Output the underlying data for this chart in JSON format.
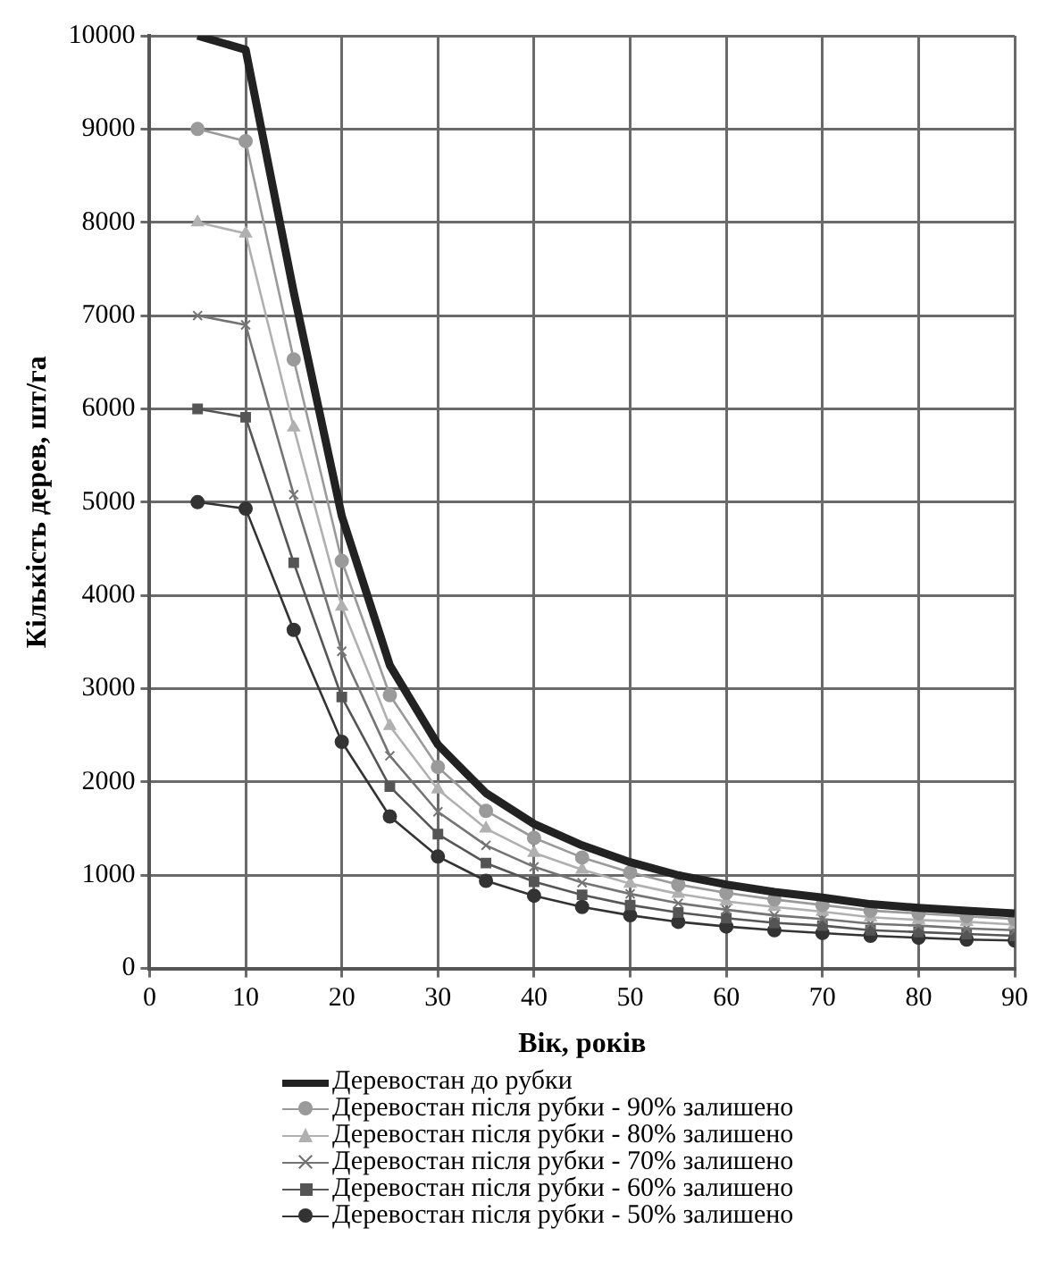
{
  "chart_data": {
    "type": "line",
    "xlabel": "Вік, років",
    "ylabel": "Кількість дерев, шт/га",
    "x": [
      5,
      10,
      15,
      20,
      25,
      30,
      35,
      40,
      45,
      50,
      55,
      60,
      65,
      70,
      75,
      80,
      85,
      90
    ],
    "xlim": [
      0,
      90
    ],
    "xticks": [
      0,
      10,
      20,
      30,
      40,
      50,
      60,
      70,
      80,
      90
    ],
    "ylim": [
      0,
      10000
    ],
    "yticks": [
      0,
      1000,
      2000,
      3000,
      4000,
      5000,
      6000,
      7000,
      8000,
      9000,
      10000
    ],
    "grid": true,
    "legend": "bottom",
    "line_style": "solid",
    "series": [
      {
        "name": "Деревостан до рубки",
        "color": "#222222",
        "marker": "none",
        "values": [
          10000,
          9850,
          7250,
          4850,
          3250,
          2400,
          1880,
          1550,
          1320,
          1140,
          1000,
          900,
          820,
          760,
          690,
          650,
          620,
          590
        ]
      },
      {
        "name": "Деревостан після рубки - 90% залишено",
        "color": "#9a9a9a",
        "marker": "circle",
        "values": [
          9000,
          8870,
          6530,
          4370,
          2930,
          2160,
          1690,
          1400,
          1190,
          1030,
          900,
          810,
          740,
          680,
          620,
          590,
          560,
          530
        ]
      },
      {
        "name": "Деревостан після рубки - 80% залишено",
        "color": "#b0b0b0",
        "marker": "triangle",
        "values": [
          8000,
          7880,
          5800,
          3880,
          2600,
          1920,
          1500,
          1240,
          1060,
          910,
          800,
          720,
          660,
          610,
          550,
          520,
          500,
          470
        ]
      },
      {
        "name": "Деревостан після рубки - 70% залишено",
        "color": "#747474",
        "marker": "cross",
        "values": [
          7000,
          6900,
          5080,
          3400,
          2280,
          1680,
          1320,
          1090,
          920,
          800,
          700,
          630,
          570,
          530,
          480,
          460,
          430,
          410
        ]
      },
      {
        "name": "Деревостан після рубки - 60% залишено",
        "color": "#555555",
        "marker": "square",
        "values": [
          6000,
          5910,
          4350,
          2910,
          1950,
          1440,
          1130,
          930,
          790,
          680,
          600,
          540,
          490,
          460,
          410,
          390,
          370,
          350
        ]
      },
      {
        "name": "Деревостан після рубки - 50% залишено",
        "color": "#333333",
        "marker": "circle",
        "values": [
          5000,
          4930,
          3630,
          2430,
          1630,
          1200,
          940,
          780,
          660,
          570,
          500,
          450,
          410,
          380,
          350,
          330,
          310,
          300
        ]
      }
    ]
  }
}
